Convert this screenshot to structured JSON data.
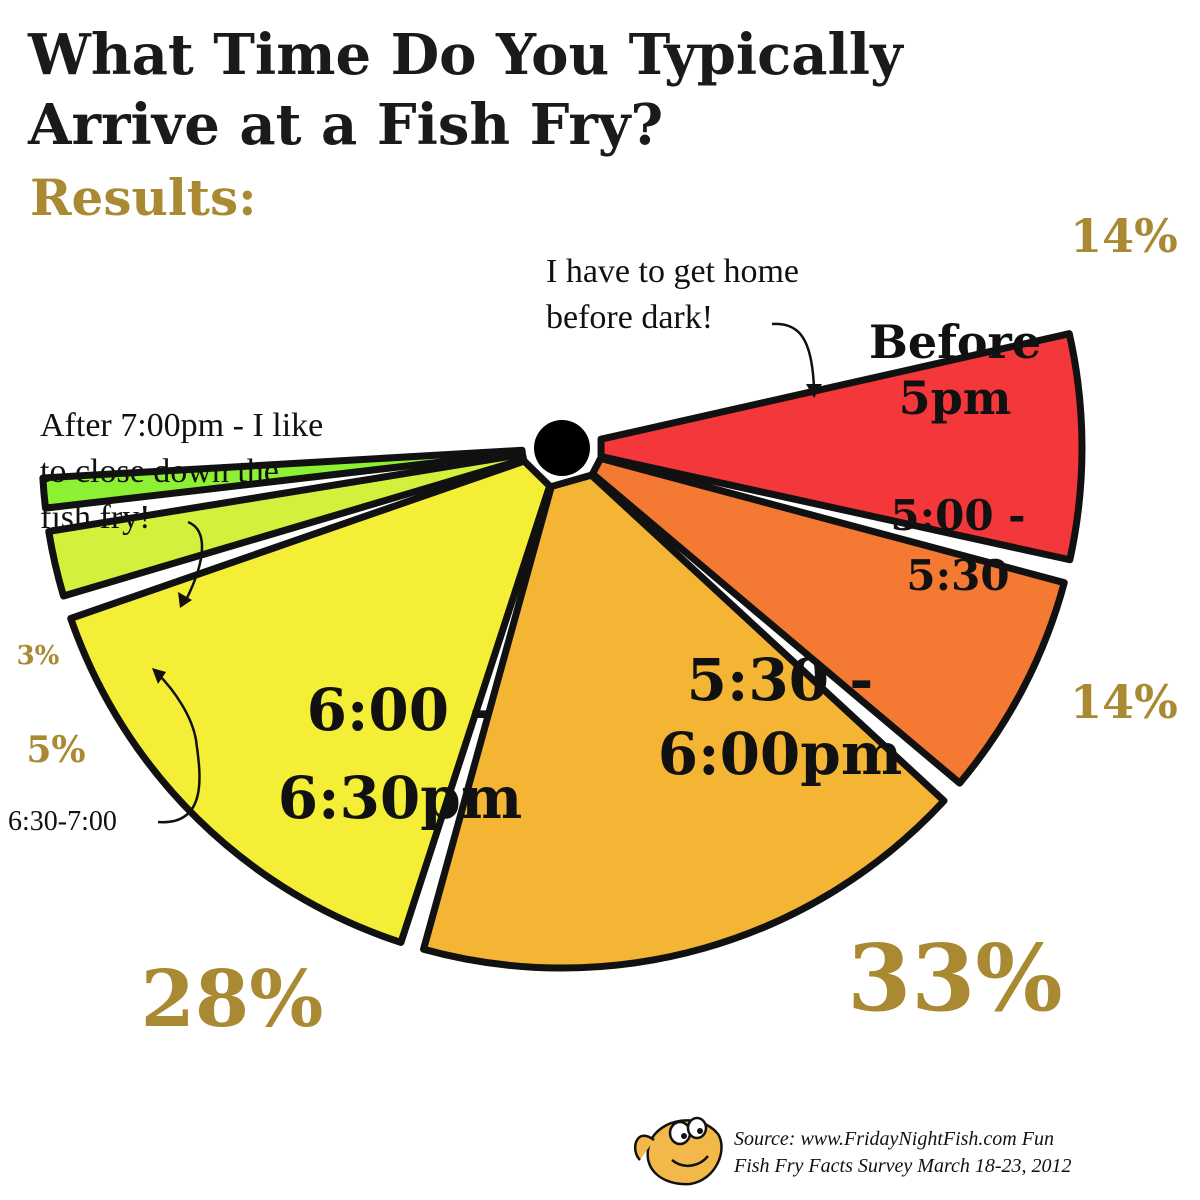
{
  "title_line1": "What Time Do You Typically",
  "title_line2": "Arrive at a Fish Fry?",
  "subtitle": "Results:",
  "notes": {
    "before_dark_line1": "I have to get home",
    "before_dark_line2": "before dark!",
    "after7_line1": "After 7:00pm - I like",
    "after7_line2": "to close down the",
    "after7_line3": "fish fry!",
    "six30_label": "6:30-7:00"
  },
  "source_line1": "Source:  www.FridayNightFish.com Fun",
  "source_line2": "Fish Fry Facts Survey March 18-23, 2012",
  "colors": {
    "accent_gold": "#a98a33",
    "outline": "#111111"
  },
  "chart_data": {
    "type": "pie",
    "title": "What Time Do You Typically Arrive at a Fish Fry?",
    "subtitle": "Results:",
    "slices": [
      {
        "label_lines": [
          "Before",
          "5pm"
        ],
        "value": 14,
        "value_label": "14%",
        "color": "#f4373b"
      },
      {
        "label_lines": [
          "5:00 -",
          "5:30"
        ],
        "value": 14,
        "value_label": "14%",
        "color": "#f47a33"
      },
      {
        "label_lines": [
          "5:30 -",
          "6:00pm"
        ],
        "value": 33,
        "value_label": "33%",
        "color": "#f4b535"
      },
      {
        "label_lines": [
          "6:00 -",
          "6:30pm"
        ],
        "value": 28,
        "value_label": "28%",
        "color": "#f4ee37"
      },
      {
        "label_lines": [],
        "value": 5,
        "value_label": "5%",
        "color": "#d4f03c"
      },
      {
        "label_lines": [],
        "value": 3,
        "value_label": "3%",
        "color": "#8ef032"
      }
    ]
  }
}
